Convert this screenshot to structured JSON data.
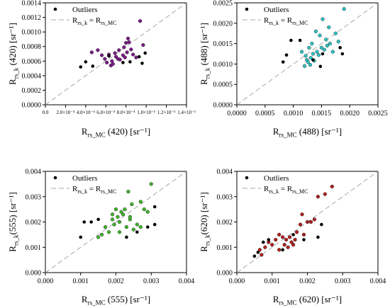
{
  "chart_data": [
    {
      "type": "scatter",
      "xlabel": "R_rs_MC (420) [sr⁻¹]",
      "ylabel": "R_rs_k (420) [sr⁻¹]",
      "xlim": [
        0,
        0.0014
      ],
      "ylim": [
        0,
        0.0014
      ],
      "x_ticks": [
        "0.0",
        "2.0×10⁻⁴",
        "4.0×10⁻⁴",
        "6.0×10⁻⁴",
        "8.0×10⁻⁴",
        "1.0×10⁻³",
        "1.2×10⁻³",
        "1.4×10⁻³"
      ],
      "y_ticks": [
        "0.0000",
        "0.0002",
        "0.0004",
        "0.0006",
        "0.0008",
        "0.0010",
        "0.0012",
        "0.0014"
      ],
      "legend": [
        {
          "label": "Outliers",
          "marker": "dot"
        },
        {
          "label": "R_rs_k = R_rs_MC",
          "marker": "dashed-line"
        }
      ],
      "one_to_one_line": true,
      "grid": false,
      "color": "#7a1a86",
      "series": [
        {
          "name": "",
          "role": "data",
          "x": [
            0.00046,
            0.00052,
            0.00056,
            0.00059,
            0.00061,
            0.00063,
            0.00065,
            0.00066,
            0.00067,
            0.00069,
            0.0007,
            0.00072,
            0.00073,
            0.00074,
            0.00077,
            0.00078,
            0.00079,
            0.0008,
            0.00081,
            0.00082,
            0.00083,
            0.00085,
            0.00087,
            0.0009,
            0.00094,
            0.00097
          ],
          "y": [
            0.00072,
            0.00075,
            0.00068,
            0.00063,
            0.00058,
            0.00069,
            0.00054,
            0.0006,
            0.00056,
            0.00071,
            0.00066,
            0.00063,
            0.00075,
            0.00062,
            0.00068,
            0.00079,
            0.00065,
            0.00085,
            0.00072,
            0.00091,
            0.00086,
            0.00076,
            0.00069,
            0.00065,
            0.00115,
            0.00082
          ]
        },
        {
          "name": "Outliers",
          "role": "outliers",
          "x": [
            0.00035,
            0.0004,
            0.00047,
            0.00063,
            0.00077,
            0.00084,
            0.00093,
            0.00096,
            0.00099
          ],
          "y": [
            0.00052,
            0.00059,
            0.00053,
            0.00067,
            0.00058,
            0.00059,
            0.00066,
            0.00057,
            0.00071
          ]
        }
      ]
    },
    {
      "type": "scatter",
      "xlabel": "R_rs_MC (488) [sr⁻¹]",
      "ylabel": "R_rs_k (488) [sr⁻¹]",
      "xlim": [
        0,
        0.0025
      ],
      "ylim": [
        0,
        0.0025
      ],
      "x_ticks": [
        "0.0000",
        "0.0005",
        "0.0010",
        "0.0015",
        "0.0020",
        "0.0025"
      ],
      "y_ticks": [
        "0.0000",
        "0.0005",
        "0.0010",
        "0.0015",
        "0.0020",
        "0.0025"
      ],
      "legend": [
        {
          "label": "Outliers",
          "marker": "dot"
        },
        {
          "label": "R_rs_k = R_rs_MC",
          "marker": "dashed-line"
        }
      ],
      "one_to_one_line": true,
      "grid": false,
      "color": "#2cc4c4",
      "series": [
        {
          "name": "",
          "role": "data",
          "x": [
            0.00115,
            0.0012,
            0.00122,
            0.00124,
            0.00126,
            0.00128,
            0.0013,
            0.00131,
            0.00133,
            0.00135,
            0.00137,
            0.0014,
            0.00142,
            0.00145,
            0.00147,
            0.0015,
            0.00152,
            0.00155,
            0.00158,
            0.0016,
            0.00163,
            0.00165,
            0.0017,
            0.00175,
            0.0018,
            0.0019
          ],
          "y": [
            0.0013,
            0.00095,
            0.0012,
            0.0011,
            0.00105,
            0.0014,
            0.00098,
            0.00115,
            0.0015,
            0.00125,
            0.00108,
            0.0018,
            0.0013,
            0.00122,
            0.0017,
            0.0014,
            0.0021,
            0.00135,
            0.0016,
            0.00145,
            0.0019,
            0.0015,
            0.0013,
            0.00175,
            0.00155,
            0.00235
          ]
        },
        {
          "name": "Outliers",
          "role": "outliers",
          "x": [
            0.00082,
            0.00088,
            0.00096,
            0.00112,
            0.00135,
            0.00148,
            0.00152,
            0.00183,
            0.00187
          ],
          "y": [
            0.00105,
            0.00122,
            0.00158,
            0.00158,
            0.0011,
            0.00094,
            0.00125,
            0.0014,
            0.00125
          ]
        }
      ]
    },
    {
      "type": "scatter",
      "xlabel": "R_rs_MC (555) [sr⁻¹]",
      "ylabel": "R_rs_k(555) [sr⁻¹]",
      "xlim": [
        0,
        0.004
      ],
      "ylim": [
        0,
        0.004
      ],
      "x_ticks": [
        "0.000",
        "0.001",
        "0.002",
        "0.003",
        "0.004"
      ],
      "y_ticks": [
        "0.000",
        "0.001",
        "0.002",
        "0.003",
        "0.004"
      ],
      "legend": [
        {
          "label": "Outliers",
          "marker": "dot"
        },
        {
          "label": "R_rs_k = R_rs_MC",
          "marker": "dashed-line"
        }
      ],
      "one_to_one_line": true,
      "grid": false,
      "color": "#3cb528",
      "series": [
        {
          "name": "",
          "role": "data",
          "x": [
            0.0015,
            0.0016,
            0.0017,
            0.0018,
            0.0019,
            0.00195,
            0.002,
            0.00205,
            0.0021,
            0.00215,
            0.0022,
            0.00225,
            0.0023,
            0.00235,
            0.0024,
            0.00245,
            0.0025,
            0.0026,
            0.0027,
            0.0028,
            0.0029,
            0.003,
            0.0019,
            0.0021,
            0.0024,
            0.0027
          ],
          "y": [
            0.0014,
            0.0015,
            0.0018,
            0.0016,
            0.0021,
            0.0019,
            0.0025,
            0.0022,
            0.002,
            0.0024,
            0.0023,
            0.0025,
            0.0018,
            0.0032,
            0.0021,
            0.0027,
            0.0017,
            0.0019,
            0.0028,
            0.0025,
            0.0024,
            0.0035,
            0.0023,
            0.0016,
            0.0022,
            0.0018
          ]
        },
        {
          "name": "Outliers",
          "role": "outliers",
          "x": [
            0.001,
            0.0011,
            0.0013,
            0.0015,
            0.0023,
            0.0026,
            0.0029,
            0.0031,
            0.0031
          ],
          "y": [
            0.0014,
            0.002,
            0.002,
            0.0021,
            0.0014,
            0.0016,
            0.0018,
            0.0026,
            0.0019
          ]
        }
      ]
    },
    {
      "type": "scatter",
      "xlabel": "R_rs_MC (620) [sr⁻¹]",
      "ylabel": "R_rs_k(620) [sr⁻¹]",
      "xlim": [
        0,
        0.004
      ],
      "ylim": [
        0,
        0.004
      ],
      "x_ticks": [
        "0.000",
        "0.001",
        "0.002",
        "0.003",
        "0.004"
      ],
      "y_ticks": [
        "0.000",
        "0.001",
        "0.002",
        "0.003",
        "0.004"
      ],
      "legend": [
        {
          "label": "Outliers",
          "marker": "dot"
        },
        {
          "label": "R_rs_k = R_rs_MC",
          "marker": "dashed-line"
        }
      ],
      "one_to_one_line": true,
      "grid": false,
      "color": "#b01c1c",
      "series": [
        {
          "name": "",
          "role": "data",
          "x": [
            0.00065,
            0.0007,
            0.0008,
            0.0009,
            0.001,
            0.0011,
            0.0012,
            0.0013,
            0.00135,
            0.0014,
            0.00145,
            0.0015,
            0.00155,
            0.0016,
            0.00165,
            0.0017,
            0.0018,
            0.00185,
            0.0019,
            0.002,
            0.0021,
            0.0022,
            0.0023,
            0.0025,
            0.0027,
            0.0012
          ],
          "y": [
            0.0009,
            0.0007,
            0.001,
            0.0012,
            0.0011,
            0.0013,
            0.0009,
            0.0014,
            0.0011,
            0.0013,
            0.001,
            0.0014,
            0.0012,
            0.0011,
            0.0013,
            0.0016,
            0.0019,
            0.0023,
            0.0015,
            0.002,
            0.002,
            0.0021,
            0.003,
            0.0031,
            0.0034,
            0.0015
          ]
        },
        {
          "name": "Outliers",
          "role": "outliers",
          "x": [
            0.0005,
            0.0006,
            0.00075,
            0.0009,
            0.0013,
            0.0016,
            0.0019,
            0.0023,
            0.0024
          ],
          "y": [
            0.00065,
            0.0008,
            0.0012,
            0.0013,
            0.0009,
            0.0015,
            0.0013,
            0.0014,
            0.0019
          ]
        }
      ]
    }
  ]
}
